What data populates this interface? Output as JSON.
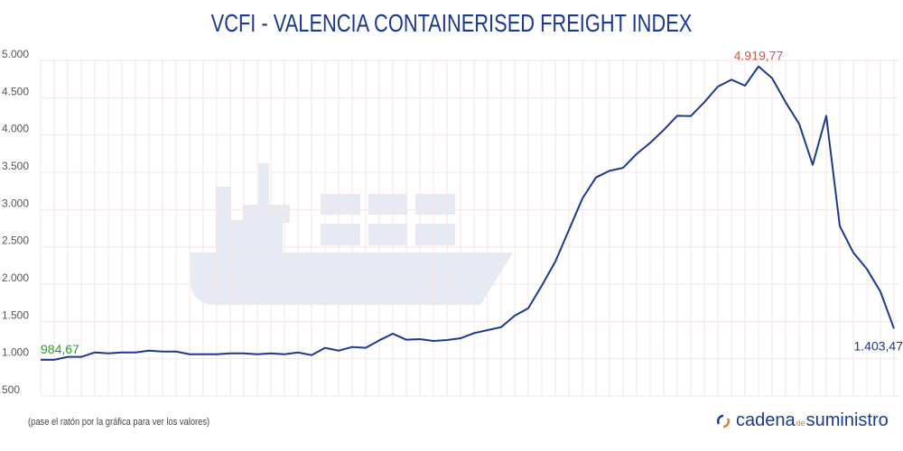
{
  "chart_data": {
    "type": "line",
    "title": "VCFI - VALENCIA CONTAINERISED FREIGHT INDEX",
    "xlabel": "",
    "ylabel": "",
    "ylim": [
      500,
      5000
    ],
    "yticks": [
      "500",
      "1.000",
      "1.500",
      "2.000",
      "2.500",
      "3.000",
      "3.500",
      "4.000",
      "4.500",
      "5.000"
    ],
    "ytick_values": [
      500,
      1000,
      1500,
      2000,
      2500,
      3000,
      3500,
      4000,
      4500,
      5000
    ],
    "grid": true,
    "line_color": "#1b3a8f",
    "values": [
      984.67,
      985,
      1024,
      1024,
      1084,
      1072,
      1084,
      1084,
      1108,
      1096,
      1096,
      1060,
      1060,
      1060,
      1072,
      1072,
      1060,
      1072,
      1060,
      1084,
      1048,
      1145,
      1108,
      1157,
      1145,
      1246,
      1335,
      1254,
      1262,
      1238,
      1250,
      1274,
      1343,
      1383,
      1423,
      1577,
      1677,
      1980,
      2302,
      2726,
      3149,
      3431,
      3520,
      3560,
      3746,
      3895,
      4068,
      4258,
      4254,
      4440,
      4649,
      4742,
      4661,
      4919.77,
      4762,
      4440,
      4149,
      3600,
      4258,
      2778,
      2423,
      2202,
      1900,
      1403.47
    ],
    "annotations": [
      {
        "text": "984,67",
        "index": 0,
        "color": "#2ca02c"
      },
      {
        "text": "4.919,77",
        "index": 53,
        "color": "#d9534f"
      },
      {
        "text": "1.403,47",
        "index": 63,
        "color": "#1b3a8f"
      }
    ]
  },
  "footer": {
    "hint": "(pase el ratón por la gráfica para ver los valores)",
    "logo_part1": "cadena",
    "logo_part2": "de",
    "logo_part3": "suministro"
  },
  "colors": {
    "watermark": "#e6eaf5",
    "grid": "#f6e4e4",
    "logo_orange": "#e8762b"
  }
}
